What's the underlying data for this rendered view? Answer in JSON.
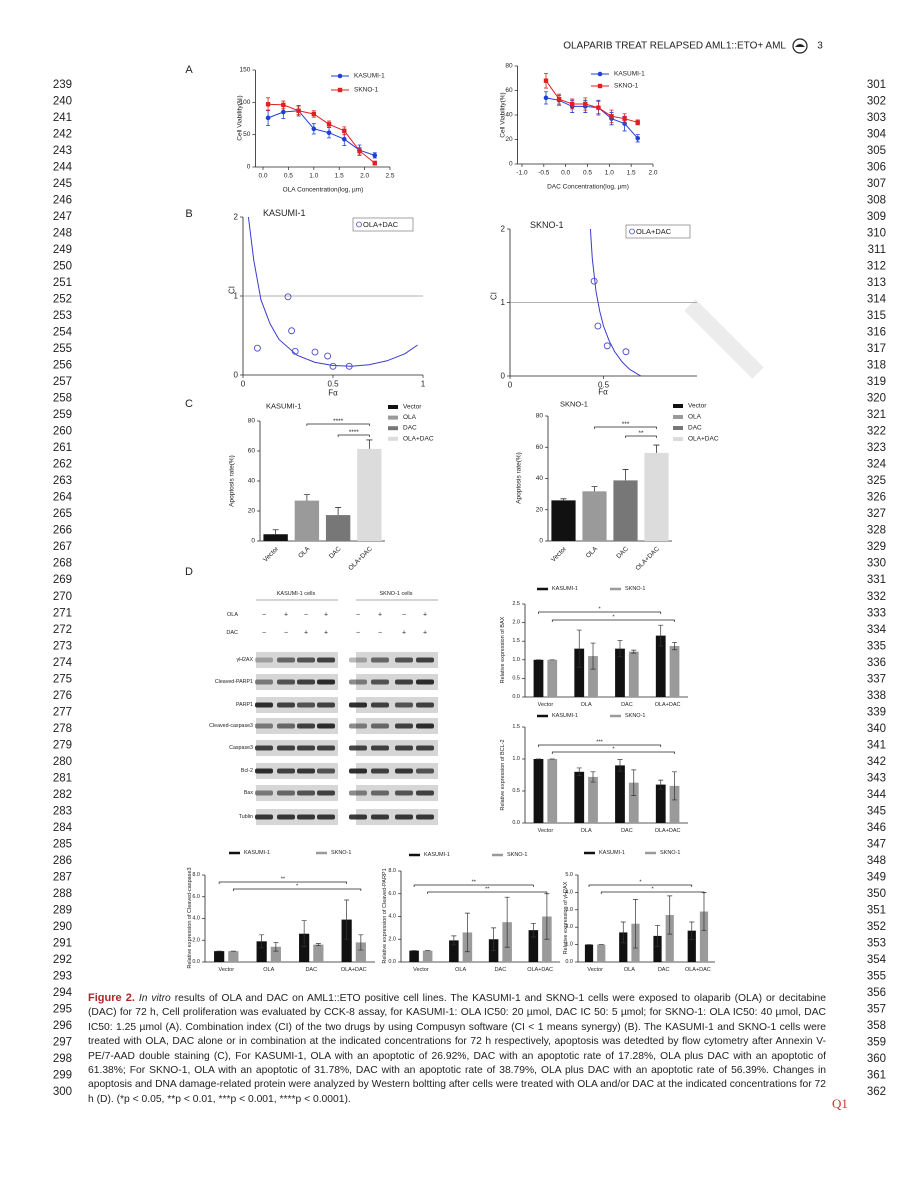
{
  "header": {
    "running_title": "OLAPARIB TREAT RELAPSED AML1::ETO+ AML",
    "page_number": 3
  },
  "line_numbers": {
    "left": [
      239,
      240,
      241,
      242,
      243,
      244,
      245,
      246,
      247,
      248,
      249,
      250,
      251,
      252,
      253,
      254,
      255,
      256,
      257,
      258,
      259,
      260,
      261,
      262,
      263,
      264,
      265,
      266,
      267,
      268,
      269,
      270,
      271,
      272,
      273,
      274,
      275,
      276,
      277,
      278,
      279,
      280,
      281,
      282,
      283,
      284,
      285,
      286,
      287,
      288,
      289,
      290,
      291,
      292,
      293,
      294,
      295,
      296,
      297,
      298,
      299,
      300
    ],
    "right": [
      301,
      302,
      303,
      304,
      305,
      306,
      307,
      308,
      309,
      310,
      311,
      312,
      313,
      314,
      315,
      316,
      317,
      318,
      319,
      320,
      321,
      322,
      323,
      324,
      325,
      326,
      327,
      328,
      329,
      330,
      331,
      332,
      333,
      334,
      335,
      336,
      337,
      338,
      339,
      340,
      341,
      342,
      343,
      344,
      345,
      346,
      347,
      348,
      349,
      350,
      351,
      352,
      353,
      354,
      355,
      356,
      357,
      358,
      359,
      360,
      361,
      362
    ]
  },
  "panel_labels": [
    "A",
    "B",
    "C",
    "D"
  ],
  "chart_data": [
    {
      "type": "line",
      "xlabel": "OLA Concentration(log, µm)",
      "ylabel": "Cell Viability(%)",
      "x": [
        0.1,
        0.4,
        0.7,
        1.0,
        1.3,
        1.6,
        1.9,
        2.2
      ],
      "series": [
        {
          "name": "KASUMI-1",
          "color": "#1f3fd6",
          "marker": "circle",
          "values": [
            76,
            85,
            87,
            59,
            53,
            43,
            26,
            18
          ],
          "errors": [
            12,
            10,
            8,
            8,
            8,
            10,
            8,
            4
          ]
        },
        {
          "name": "SKNO-1",
          "color": "#e02020",
          "marker": "square",
          "values": [
            97,
            96,
            87,
            82,
            66,
            56,
            25,
            6
          ],
          "errors": [
            10,
            6,
            6,
            5,
            5,
            6,
            5,
            3
          ]
        }
      ],
      "xlim": [
        -0.15,
        2.5
      ],
      "xticks": [
        {
          "value": 0,
          "label": "0.0"
        },
        0.5,
        {
          "value": 1,
          "label": "1.0"
        },
        1.5,
        {
          "value": 2,
          "label": "2.0"
        },
        2.5
      ],
      "ylim": [
        0,
        150
      ],
      "yticks": [
        0,
        50,
        100,
        150
      ]
    },
    {
      "type": "line",
      "xlabel": "DAC Concentration(log, µm)",
      "ylabel": "Cell Viability(%)",
      "x": [
        -0.45,
        -0.15,
        0.15,
        0.45,
        0.75,
        1.05,
        1.35,
        1.65
      ],
      "series": [
        {
          "name": "KASUMI-1",
          "color": "#1f3fd6",
          "marker": "circle",
          "values": [
            54,
            52,
            47,
            47,
            46,
            37,
            33,
            21
          ],
          "errors": [
            5,
            4,
            5,
            5,
            6,
            5,
            6,
            3
          ]
        },
        {
          "name": "SKNO-1",
          "color": "#e02020",
          "marker": "square",
          "values": [
            68,
            53,
            49,
            49,
            46,
            39,
            37,
            34
          ],
          "errors": [
            6,
            4,
            4,
            5,
            5,
            5,
            4,
            2
          ]
        }
      ],
      "xlim": [
        -1.1,
        2.0
      ],
      "xticks": [
        {
          "value": -1,
          "label": "-1.0"
        },
        -0.5,
        {
          "value": 0,
          "label": "0.0"
        },
        0.5,
        {
          "value": 1,
          "label": "1.0"
        },
        1.5,
        {
          "value": 2,
          "label": "2.0"
        }
      ],
      "ylim": [
        0,
        80
      ],
      "yticks": [
        0,
        20,
        40,
        60,
        80
      ]
    },
    {
      "type": "scatter",
      "title": "KASUMI-1",
      "xlabel": "Fα",
      "ylabel": "CI",
      "series": [
        {
          "name": "OLA+DAC",
          "color": "#4b4bc8",
          "x": [
            0.08,
            0.25,
            0.27,
            0.29,
            0.4,
            0.47,
            0.5,
            0.59
          ],
          "values": [
            0.34,
            0.99,
            0.56,
            0.3,
            0.29,
            0.24,
            0.11,
            0.11
          ]
        }
      ],
      "fit": {
        "color": "#3a3ad0",
        "x": [
          0.03,
          0.06,
          0.1,
          0.15,
          0.2,
          0.3,
          0.4,
          0.5,
          0.6,
          0.7,
          0.8,
          0.9,
          0.97
        ],
        "values": [
          2.0,
          1.45,
          0.95,
          0.65,
          0.45,
          0.25,
          0.16,
          0.12,
          0.11,
          0.13,
          0.18,
          0.27,
          0.38
        ]
      },
      "reference_line": 1,
      "xlim": [
        0,
        1
      ],
      "xticks": [
        0,
        0.5,
        1
      ],
      "ylim": [
        0,
        2
      ],
      "yticks": [
        0,
        1,
        2
      ]
    },
    {
      "type": "scatter",
      "title": "SKNO-1",
      "xlabel": "Fα",
      "ylabel": "CI",
      "series": [
        {
          "name": "OLA+DAC",
          "color": "#4b4bc8",
          "x": [
            0.45,
            0.47,
            0.52,
            0.62
          ],
          "values": [
            1.29,
            0.68,
            0.41,
            0.33
          ]
        }
      ],
      "fit": {
        "color": "#3a3ad0",
        "x": [
          0.43,
          0.44,
          0.46,
          0.48,
          0.5,
          0.53,
          0.56,
          0.6,
          0.64,
          0.68,
          0.7
        ],
        "values": [
          2.0,
          1.6,
          1.15,
          0.88,
          0.68,
          0.48,
          0.33,
          0.19,
          0.09,
          0.03,
          0.0
        ]
      },
      "reference_line": 1,
      "xlim": [
        0,
        1
      ],
      "xticks": [
        0,
        0.5
      ],
      "ylim": [
        0,
        2
      ],
      "yticks": [
        0,
        1,
        2
      ]
    },
    {
      "type": "bar",
      "title": "KASUMI-1",
      "ylabel": "Apoptosis rate(%)",
      "categories": [
        "Vector",
        "OLA",
        "DAC",
        "OLA+DAC"
      ],
      "values": [
        4.5,
        26.92,
        17.28,
        61.38
      ],
      "errors": [
        3,
        4,
        5,
        6
      ],
      "colors": [
        "#111111",
        "#9a9a9a",
        "#777777",
        "#dcdcdc"
      ],
      "comparisons": [
        {
          "label": "****",
          "groups": [
            "OLA",
            "OLA+DAC"
          ]
        },
        {
          "label": "****",
          "groups": [
            "DAC",
            "OLA+DAC"
          ]
        }
      ],
      "ylim": [
        0,
        80
      ],
      "yticks": [
        0,
        20,
        40,
        60,
        80
      ]
    },
    {
      "type": "bar",
      "title": "SKNO-1",
      "ylabel": "Apoptosis rate(%)",
      "categories": [
        "Vector",
        "OLA",
        "DAC",
        "OLA+DAC"
      ],
      "values": [
        26,
        31.78,
        38.79,
        56.39
      ],
      "errors": [
        1,
        3,
        7,
        5
      ],
      "colors": [
        "#111111",
        "#9a9a9a",
        "#777777",
        "#dcdcdc"
      ],
      "comparisons": [
        {
          "label": "***",
          "groups": [
            "OLA",
            "OLA+DAC"
          ]
        },
        {
          "label": "**",
          "groups": [
            "DAC",
            "OLA+DAC"
          ]
        }
      ],
      "ylim": [
        0,
        80
      ],
      "yticks": [
        0,
        20,
        40,
        60,
        80
      ]
    },
    {
      "type": "bar",
      "ylabel": "Relative expression of BAX",
      "categories": [
        "Vector",
        "OLA",
        "DAC",
        "OLA+DAC"
      ],
      "series": [
        {
          "name": "KASUMI-1",
          "color": "#111111",
          "values": [
            1.0,
            1.3,
            1.3,
            1.65
          ],
          "errors": [
            0,
            0.5,
            0.22,
            0.28
          ]
        },
        {
          "name": "SKNO-1",
          "color": "#9a9a9a",
          "values": [
            1.0,
            1.1,
            1.22,
            1.37
          ],
          "errors": [
            0,
            0.35,
            0.04,
            0.1
          ]
        }
      ],
      "comparisons": [
        {
          "label": "*",
          "groups": [
            "Vector",
            "OLA+DAC"
          ],
          "series": "KASUMI-1"
        },
        {
          "label": "*",
          "groups": [
            "Vector",
            "OLA+DAC"
          ],
          "series": "SKNO-1"
        }
      ],
      "ylim": [
        0,
        2.5
      ],
      "yticks": [
        {
          "value": 0,
          "label": "0.0"
        },
        0.5,
        {
          "value": 1,
          "label": "1.0"
        },
        1.5,
        {
          "value": 2,
          "label": "2.0"
        },
        2.5
      ]
    },
    {
      "type": "bar",
      "ylabel": "Relative expression of BCL-2",
      "categories": [
        "Vector",
        "OLA",
        "DAC",
        "OLA+DAC"
      ],
      "series": [
        {
          "name": "KASUMI-1",
          "color": "#111111",
          "values": [
            1.0,
            0.8,
            0.9,
            0.6
          ],
          "errors": [
            0,
            0.06,
            0.09,
            0.07
          ]
        },
        {
          "name": "SKNO-1",
          "color": "#9a9a9a",
          "values": [
            1.0,
            0.72,
            0.63,
            0.58
          ],
          "errors": [
            0,
            0.08,
            0.2,
            0.22
          ]
        }
      ],
      "comparisons": [
        {
          "label": "***",
          "groups": [
            "Vector",
            "OLA+DAC"
          ],
          "series": "KASUMI-1"
        },
        {
          "label": "*",
          "groups": [
            "Vector",
            "OLA+DAC"
          ],
          "series": "SKNO-1"
        }
      ],
      "ylim": [
        0,
        1.5
      ],
      "yticks": [
        {
          "value": 0,
          "label": "0.0"
        },
        0.5,
        {
          "value": 1,
          "label": "1.0"
        },
        1.5
      ]
    },
    {
      "type": "bar",
      "ylabel": "Relative expression of Cleaved-caspase3",
      "categories": [
        "Vector",
        "OLA",
        "DAC",
        "OLA+DAC"
      ],
      "series": [
        {
          "name": "KASUMI-1",
          "color": "#111111",
          "values": [
            1.0,
            1.9,
            2.6,
            3.9
          ],
          "errors": [
            0,
            0.6,
            1.2,
            1.8
          ]
        },
        {
          "name": "SKNO-1",
          "color": "#9a9a9a",
          "values": [
            1.0,
            1.4,
            1.6,
            1.8
          ],
          "errors": [
            0,
            0.4,
            0.1,
            0.7
          ]
        }
      ],
      "comparisons": [
        {
          "label": "**",
          "groups": [
            "Vector",
            "OLA+DAC"
          ],
          "series": "KASUMI-1"
        },
        {
          "label": "*",
          "groups": [
            "Vector",
            "OLA+DAC"
          ],
          "series": "SKNO-1"
        }
      ],
      "ylim": [
        0,
        8
      ],
      "yticks": [
        {
          "value": 0,
          "label": "0.0"
        },
        {
          "value": 2,
          "label": "2.0"
        },
        {
          "value": 4,
          "label": "4.0"
        },
        {
          "value": 6,
          "label": "6.0"
        },
        {
          "value": 8,
          "label": "8.0"
        }
      ]
    },
    {
      "type": "bar",
      "ylabel": "Relative expression of Cleaved-PARP1",
      "categories": [
        "Vector",
        "OLA",
        "DAC",
        "OLA+DAC"
      ],
      "series": [
        {
          "name": "KASUMI-1",
          "color": "#111111",
          "values": [
            1.0,
            1.9,
            2.0,
            2.8
          ],
          "errors": [
            0,
            0.4,
            1.0,
            0.6
          ]
        },
        {
          "name": "SKNO-1",
          "color": "#9a9a9a",
          "values": [
            1.0,
            2.6,
            3.5,
            4.0
          ],
          "errors": [
            0,
            1.7,
            2.2,
            2.0
          ]
        }
      ],
      "comparisons": [
        {
          "label": "**",
          "groups": [
            "Vector",
            "OLA+DAC"
          ],
          "series": "KASUMI-1"
        },
        {
          "label": "**",
          "groups": [
            "Vector",
            "OLA+DAC"
          ],
          "series": "SKNO-1"
        }
      ],
      "ylim": [
        0,
        8
      ],
      "yticks": [
        {
          "value": 0,
          "label": "0.0"
        },
        {
          "value": 2,
          "label": "2.0"
        },
        {
          "value": 4,
          "label": "4.0"
        },
        {
          "value": 6,
          "label": "6.0"
        },
        {
          "value": 8,
          "label": "8.0"
        }
      ]
    },
    {
      "type": "bar",
      "ylabel": "Relative expression of γH2AX",
      "categories": [
        "Vector",
        "OLA",
        "DAC",
        "OLA+DAC"
      ],
      "series": [
        {
          "name": "KASUMI-1",
          "color": "#111111",
          "values": [
            1.0,
            1.7,
            1.5,
            1.8
          ],
          "errors": [
            0,
            0.6,
            0.6,
            0.5
          ]
        },
        {
          "name": "SKNO-1",
          "color": "#9a9a9a",
          "values": [
            1.0,
            2.2,
            2.7,
            2.9
          ],
          "errors": [
            0,
            1.4,
            1.1,
            1.1
          ]
        }
      ],
      "comparisons": [
        {
          "label": "*",
          "groups": [
            "Vector",
            "OLA+DAC"
          ],
          "series": "KASUMI-1"
        },
        {
          "label": "*",
          "groups": [
            "Vector",
            "OLA+DAC"
          ],
          "series": "SKNO-1"
        }
      ],
      "ylim": [
        0,
        5
      ],
      "yticks": [
        {
          "value": 0,
          "label": "0.0"
        },
        {
          "value": 1,
          "label": "1.0"
        },
        {
          "value": 2,
          "label": "2.0"
        },
        {
          "value": 3,
          "label": "3.0"
        },
        {
          "value": 4,
          "label": "4.0"
        },
        {
          "value": 5,
          "label": "5.0"
        }
      ]
    }
  ],
  "western_blot": {
    "cell_lines": [
      "KASUMI-1 cells",
      "SKNO-1 cells"
    ],
    "treatments": [
      {
        "name": "OLA",
        "signs": [
          "−",
          "+",
          "−",
          "+",
          "−",
          "+",
          "−",
          "+"
        ]
      },
      {
        "name": "DAC",
        "signs": [
          "−",
          "−",
          "+",
          "+",
          "−",
          "−",
          "+",
          "+"
        ]
      }
    ],
    "proteins": [
      "γH2AX",
      "Cleaved-PARP1",
      "PARP1",
      "Cleaved-caspase3",
      "Caspase3",
      "Bcl-2",
      "Bax",
      "Tublin"
    ]
  },
  "caption": {
    "label": "Figure 2.",
    "italic_lead": "In vitro",
    "text": "results of OLA and DAC on AML1::ETO positive cell lines. The KASUMI-1 and SKNO-1 cells were exposed to olaparib (OLA) or decitabine (DAC) for 72 h, Cell proliferation was evaluated by CCK-8 assay, for KASUMI-1: OLA IC50: 20 µmol, DAC IC 50: 5 µmol; for SKNO-1: OLA IC50: 40 µmol, DAC IC50: 1.25 µmol (A). Combination index (CI) of the two drugs by using Compusyn software (CI < 1 means synergy) (B). The KASUMI-1 and SKNO-1 cells were treated with OLA, DAC alone or in combination at the indicated concentrations for 72 h respectively, apoptosis was detedted by flow cytometry after Annexin V-PE/7-AAD double staining (C), For KASUMI-1, OLA with an apoptotic of 26.92%, DAC with an apoptotic rate of 17.28%, OLA plus DAC with an apoptotic of 61.38%; For SKNO-1, OLA with an apoptotic of 31.78%, DAC with an apoptotic rate of 38.79%, OLA plus DAC with an apoptotic rate of 56.39%. Changes in apoptosis and DNA damage-related protein were analyzed by Western boltting after cells were treated with OLA and/or DAC at the indicated concentrations for 72 h (D). (*p < 0.05, **p < 0.01, ***p < 0.001, ****p < 0.0001)."
  },
  "margin_note": "Q1"
}
